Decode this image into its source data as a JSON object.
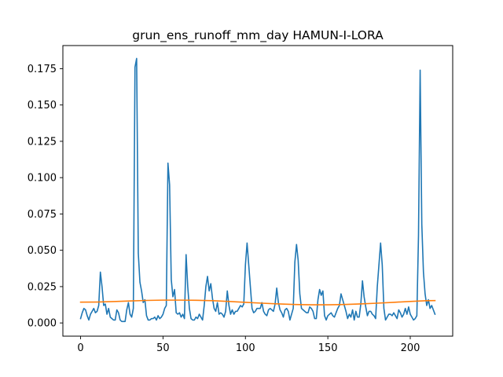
{
  "chart_data": {
    "type": "line",
    "title": "grun_ens_runoff_mm_day HAMUN-I-LORA",
    "xlabel": "",
    "ylabel": "",
    "xlim": [
      -10.75,
      225.75
    ],
    "ylim": [
      -0.0091,
      0.1909
    ],
    "grid": false,
    "x_ticks": [
      0,
      50,
      100,
      150,
      200
    ],
    "x_tick_labels": [
      "0",
      "50",
      "100",
      "150",
      "200"
    ],
    "y_ticks": [
      0.0,
      0.025,
      0.05,
      0.075,
      0.1,
      0.125,
      0.15,
      0.175
    ],
    "y_tick_labels": [
      "0.000",
      "0.025",
      "0.050",
      "0.075",
      "0.100",
      "0.125",
      "0.150",
      "0.175"
    ],
    "series": [
      {
        "color": "#1f77b4",
        "x": [
          0,
          1,
          2,
          3,
          4,
          5,
          6,
          7,
          8,
          9,
          10,
          11,
          12,
          13,
          14,
          15,
          16,
          17,
          18,
          19,
          20,
          21,
          22,
          23,
          24,
          25,
          26,
          27,
          28,
          29,
          30,
          31,
          32,
          33,
          34,
          35,
          36,
          37,
          38,
          39,
          40,
          41,
          42,
          43,
          44,
          45,
          46,
          47,
          48,
          49,
          50,
          51,
          52,
          53,
          54,
          55,
          56,
          57,
          58,
          59,
          60,
          61,
          62,
          63,
          64,
          65,
          66,
          67,
          68,
          69,
          70,
          71,
          72,
          73,
          74,
          75,
          76,
          77,
          78,
          79,
          80,
          81,
          82,
          83,
          84,
          85,
          86,
          87,
          88,
          89,
          90,
          91,
          92,
          93,
          94,
          95,
          96,
          97,
          98,
          99,
          100,
          101,
          102,
          103,
          104,
          105,
          106,
          107,
          108,
          109,
          110,
          111,
          112,
          113,
          114,
          115,
          116,
          117,
          118,
          119,
          120,
          121,
          122,
          123,
          124,
          125,
          126,
          127,
          128,
          129,
          130,
          131,
          132,
          133,
          134,
          135,
          136,
          137,
          138,
          139,
          140,
          141,
          142,
          143,
          144,
          145,
          146,
          147,
          148,
          149,
          150,
          151,
          152,
          153,
          154,
          155,
          156,
          157,
          158,
          159,
          160,
          161,
          162,
          163,
          164,
          165,
          166,
          167,
          168,
          169,
          170,
          171,
          172,
          173,
          174,
          175,
          176,
          177,
          178,
          179,
          180,
          181,
          182,
          183,
          184,
          185,
          186,
          187,
          188,
          189,
          190,
          191,
          192,
          193,
          194,
          195,
          196,
          197,
          198,
          199,
          200,
          201,
          202,
          203,
          204,
          205,
          206,
          207,
          208,
          209,
          210,
          211,
          212,
          213,
          214,
          215
        ],
        "y": [
          0.003,
          0.007,
          0.01,
          0.009,
          0.005,
          0.002,
          0.006,
          0.008,
          0.01,
          0.007,
          0.008,
          0.012,
          0.035,
          0.025,
          0.012,
          0.013,
          0.006,
          0.01,
          0.004,
          0.003,
          0.002,
          0.002,
          0.009,
          0.007,
          0.002,
          0.001,
          0.001,
          0.001,
          0.009,
          0.014,
          0.006,
          0.004,
          0.01,
          0.176,
          0.182,
          0.048,
          0.028,
          0.022,
          0.014,
          0.016,
          0.005,
          0.002,
          0.002,
          0.003,
          0.003,
          0.004,
          0.002,
          0.005,
          0.003,
          0.004,
          0.006,
          0.01,
          0.012,
          0.11,
          0.095,
          0.03,
          0.018,
          0.023,
          0.007,
          0.006,
          0.007,
          0.004,
          0.006,
          0.003,
          0.047,
          0.025,
          0.01,
          0.003,
          0.002,
          0.002,
          0.004,
          0.003,
          0.006,
          0.004,
          0.002,
          0.012,
          0.025,
          0.032,
          0.022,
          0.027,
          0.017,
          0.01,
          0.008,
          0.014,
          0.006,
          0.007,
          0.006,
          0.004,
          0.008,
          0.022,
          0.012,
          0.006,
          0.009,
          0.006,
          0.008,
          0.008,
          0.01,
          0.012,
          0.011,
          0.013,
          0.04,
          0.055,
          0.04,
          0.025,
          0.01,
          0.007,
          0.008,
          0.01,
          0.01,
          0.01,
          0.014,
          0.008,
          0.006,
          0.005,
          0.009,
          0.01,
          0.009,
          0.008,
          0.013,
          0.024,
          0.014,
          0.009,
          0.007,
          0.004,
          0.009,
          0.01,
          0.008,
          0.002,
          0.006,
          0.01,
          0.042,
          0.054,
          0.043,
          0.02,
          0.01,
          0.009,
          0.008,
          0.007,
          0.007,
          0.011,
          0.01,
          0.008,
          0.003,
          0.003,
          0.016,
          0.023,
          0.019,
          0.022,
          0.005,
          0.002,
          0.005,
          0.006,
          0.007,
          0.005,
          0.004,
          0.007,
          0.01,
          0.012,
          0.02,
          0.016,
          0.012,
          0.008,
          0.003,
          0.006,
          0.004,
          0.009,
          0.002,
          0.008,
          0.004,
          0.004,
          0.013,
          0.029,
          0.018,
          0.011,
          0.005,
          0.008,
          0.008,
          0.006,
          0.005,
          0.003,
          0.025,
          0.04,
          0.055,
          0.04,
          0.01,
          0.002,
          0.004,
          0.006,
          0.006,
          0.005,
          0.007,
          0.005,
          0.003,
          0.009,
          0.007,
          0.004,
          0.006,
          0.01,
          0.006,
          0.011,
          0.006,
          0.004,
          0.002,
          0.003,
          0.005,
          0.06,
          0.174,
          0.068,
          0.035,
          0.02,
          0.012,
          0.016,
          0.01,
          0.012,
          0.009,
          0.006
        ]
      },
      {
        "color": "#ff7f0e",
        "x": [
          0,
          10,
          20,
          30,
          40,
          50,
          60,
          70,
          80,
          90,
          100,
          110,
          120,
          130,
          140,
          150,
          160,
          170,
          180,
          190,
          200,
          210,
          215
        ],
        "y": [
          0.0143,
          0.0144,
          0.0147,
          0.0151,
          0.0155,
          0.0157,
          0.0157,
          0.0156,
          0.0153,
          0.0148,
          0.0142,
          0.0136,
          0.0131,
          0.0127,
          0.0125,
          0.0125,
          0.0127,
          0.0131,
          0.0136,
          0.0142,
          0.0148,
          0.0153,
          0.0154
        ]
      }
    ]
  }
}
